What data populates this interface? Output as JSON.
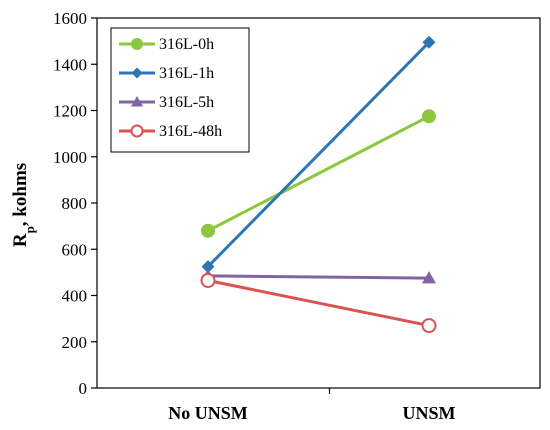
{
  "chart_data": {
    "type": "line",
    "categories": [
      "No UNSM",
      "UNSM"
    ],
    "ylabel_main": "R",
    "ylabel_sub": "p",
    "ylabel_rest": ", kohms",
    "ylim": [
      0,
      1600
    ],
    "yticks": [
      0,
      200,
      400,
      600,
      800,
      1000,
      1200,
      1400,
      1600
    ],
    "grid": false,
    "legend_position": "top-left",
    "series": [
      {
        "name": "316L-0h",
        "values": [
          680,
          1175
        ],
        "color": "#8dc63f",
        "marker": "filled-circle"
      },
      {
        "name": "316L-1h",
        "values": [
          525,
          1495
        ],
        "color": "#2e75b6",
        "marker": "diamond"
      },
      {
        "name": "316L-5h",
        "values": [
          485,
          475
        ],
        "color": "#8064a2",
        "marker": "triangle"
      },
      {
        "name": "316L-48h",
        "values": [
          465,
          270
        ],
        "color": "#d9534f",
        "marker": "open-circle"
      }
    ]
  }
}
